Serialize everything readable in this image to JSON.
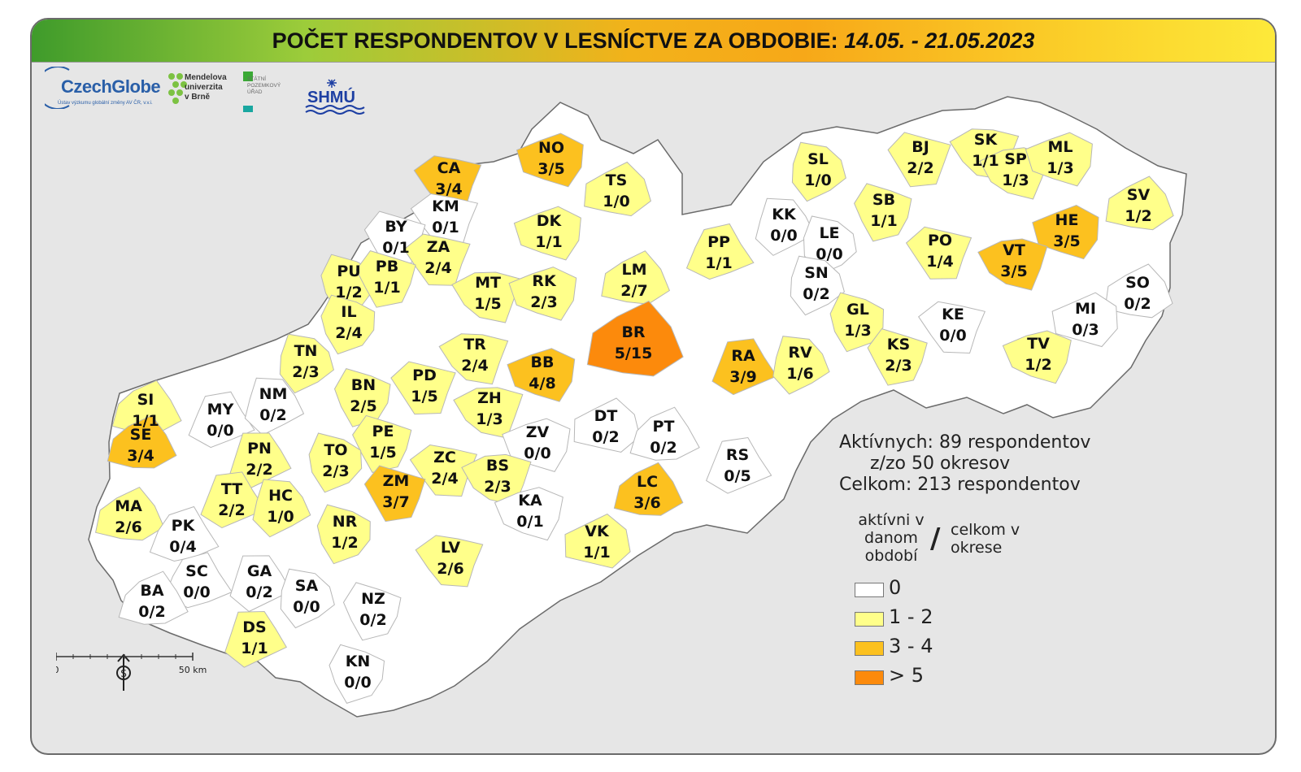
{
  "title": {
    "prefix": "POČET RESPONDENTOV V LESNÍCTVE ZA OBDOBIE: ",
    "period": "14.05. - 21.05.2023"
  },
  "logos": {
    "czechglobe_name": "CzechGlobe",
    "czechglobe_sub": "Ústav výzkumu globální změny AV ČR, v.v.i.",
    "mendelu_lines": [
      "Mendelova",
      "univerzita",
      "v Brně"
    ],
    "spu_lines": [
      "STÁTNÍ",
      "POZEMKOVÝ",
      "ÚŘAD"
    ],
    "shmu": "SHMÚ"
  },
  "colors": {
    "zero": "#ffffff",
    "low": "#ffff8a",
    "mid": "#fcc11f",
    "high": "#fc8a0c",
    "border": "#b7b7b7"
  },
  "districts": [
    {
      "code": "CA",
      "ratio": "3/4",
      "cls": "mid"
    },
    {
      "code": "NO",
      "ratio": "3/5",
      "cls": "mid"
    },
    {
      "code": "KM",
      "ratio": "0/1",
      "cls": "zero"
    },
    {
      "code": "BY",
      "ratio": "0/1",
      "cls": "zero"
    },
    {
      "code": "TS",
      "ratio": "1/0",
      "cls": "low"
    },
    {
      "code": "DK",
      "ratio": "1/1",
      "cls": "low"
    },
    {
      "code": "ZA",
      "ratio": "2/4",
      "cls": "low"
    },
    {
      "code": "PU",
      "ratio": "1/2",
      "cls": "low"
    },
    {
      "code": "PB",
      "ratio": "1/1",
      "cls": "low"
    },
    {
      "code": "MT",
      "ratio": "1/5",
      "cls": "low"
    },
    {
      "code": "RK",
      "ratio": "2/3",
      "cls": "low"
    },
    {
      "code": "LM",
      "ratio": "2/7",
      "cls": "low"
    },
    {
      "code": "PP",
      "ratio": "1/1",
      "cls": "low"
    },
    {
      "code": "SL",
      "ratio": "1/0",
      "cls": "low"
    },
    {
      "code": "BJ",
      "ratio": "2/2",
      "cls": "low"
    },
    {
      "code": "SK",
      "ratio": "1/1",
      "cls": "low"
    },
    {
      "code": "SP",
      "ratio": "1/3",
      "cls": "low"
    },
    {
      "code": "ML",
      "ratio": "1/3",
      "cls": "low"
    },
    {
      "code": "SV",
      "ratio": "1/2",
      "cls": "low"
    },
    {
      "code": "HE",
      "ratio": "3/5",
      "cls": "mid"
    },
    {
      "code": "KK",
      "ratio": "0/0",
      "cls": "zero"
    },
    {
      "code": "LE",
      "ratio": "0/0",
      "cls": "zero"
    },
    {
      "code": "SB",
      "ratio": "1/1",
      "cls": "low"
    },
    {
      "code": "PO",
      "ratio": "1/4",
      "cls": "low"
    },
    {
      "code": "VT",
      "ratio": "3/5",
      "cls": "mid"
    },
    {
      "code": "SN",
      "ratio": "0/2",
      "cls": "zero"
    },
    {
      "code": "SO",
      "ratio": "0/2",
      "cls": "zero"
    },
    {
      "code": "MI",
      "ratio": "0/3",
      "cls": "zero"
    },
    {
      "code": "IL",
      "ratio": "2/4",
      "cls": "low"
    },
    {
      "code": "TN",
      "ratio": "2/3",
      "cls": "low"
    },
    {
      "code": "BN",
      "ratio": "2/5",
      "cls": "low"
    },
    {
      "code": "PD",
      "ratio": "1/5",
      "cls": "low"
    },
    {
      "code": "TR",
      "ratio": "2/4",
      "cls": "low"
    },
    {
      "code": "BB",
      "ratio": "4/8",
      "cls": "mid"
    },
    {
      "code": "BR",
      "ratio": "5/15",
      "cls": "high"
    },
    {
      "code": "RA",
      "ratio": "3/9",
      "cls": "mid"
    },
    {
      "code": "RV",
      "ratio": "1/6",
      "cls": "low"
    },
    {
      "code": "GL",
      "ratio": "1/3",
      "cls": "low"
    },
    {
      "code": "KE",
      "ratio": "0/0",
      "cls": "zero"
    },
    {
      "code": "KS",
      "ratio": "2/3",
      "cls": "low"
    },
    {
      "code": "TV",
      "ratio": "1/2",
      "cls": "low"
    },
    {
      "code": "SI",
      "ratio": "1/1",
      "cls": "low"
    },
    {
      "code": "MY",
      "ratio": "0/0",
      "cls": "zero"
    },
    {
      "code": "NM",
      "ratio": "0/2",
      "cls": "zero"
    },
    {
      "code": "SE",
      "ratio": "3/4",
      "cls": "mid"
    },
    {
      "code": "ZH",
      "ratio": "1/3",
      "cls": "low"
    },
    {
      "code": "PE",
      "ratio": "1/5",
      "cls": "low"
    },
    {
      "code": "PN",
      "ratio": "2/2",
      "cls": "low"
    },
    {
      "code": "TO",
      "ratio": "2/3",
      "cls": "low"
    },
    {
      "code": "ZV",
      "ratio": "0/0",
      "cls": "zero"
    },
    {
      "code": "DT",
      "ratio": "0/2",
      "cls": "zero"
    },
    {
      "code": "PT",
      "ratio": "0/2",
      "cls": "zero"
    },
    {
      "code": "RS",
      "ratio": "0/5",
      "cls": "zero"
    },
    {
      "code": "ZC",
      "ratio": "2/4",
      "cls": "low"
    },
    {
      "code": "BS",
      "ratio": "2/3",
      "cls": "low"
    },
    {
      "code": "ZM",
      "ratio": "3/7",
      "cls": "mid"
    },
    {
      "code": "LC",
      "ratio": "3/6",
      "cls": "mid"
    },
    {
      "code": "MA",
      "ratio": "2/6",
      "cls": "low"
    },
    {
      "code": "TT",
      "ratio": "2/2",
      "cls": "low"
    },
    {
      "code": "HC",
      "ratio": "1/0",
      "cls": "low"
    },
    {
      "code": "KA",
      "ratio": "0/1",
      "cls": "zero"
    },
    {
      "code": "NR",
      "ratio": "1/2",
      "cls": "low"
    },
    {
      "code": "VK",
      "ratio": "1/1",
      "cls": "low"
    },
    {
      "code": "PK",
      "ratio": "0/4",
      "cls": "zero"
    },
    {
      "code": "SC",
      "ratio": "0/0",
      "cls": "zero"
    },
    {
      "code": "GA",
      "ratio": "0/2",
      "cls": "zero"
    },
    {
      "code": "SA",
      "ratio": "0/0",
      "cls": "zero"
    },
    {
      "code": "LV",
      "ratio": "2/6",
      "cls": "low"
    },
    {
      "code": "BA",
      "ratio": "0/2",
      "cls": "zero"
    },
    {
      "code": "NZ",
      "ratio": "0/2",
      "cls": "zero"
    },
    {
      "code": "DS",
      "ratio": "1/1",
      "cls": "low"
    },
    {
      "code": "KN",
      "ratio": "0/0",
      "cls": "zero"
    }
  ],
  "stats": {
    "active": "Aktívnych: 89 respondentov",
    "districts": "z/zo 50 okresov",
    "total": "Celkom: 213 respondentov"
  },
  "legend": {
    "active_label": "aktívni v danom období",
    "slash": "/",
    "total_label": "celkom v okrese",
    "items": [
      {
        "label": "0",
        "color": "#ffffff"
      },
      {
        "label": "1 - 2",
        "color": "#ffff8a"
      },
      {
        "label": "3 - 4",
        "color": "#fcc11f"
      },
      {
        "label": "> 5",
        "color": "#fc8a0c"
      }
    ]
  },
  "scale": {
    "start": "0",
    "end": "50 km"
  }
}
